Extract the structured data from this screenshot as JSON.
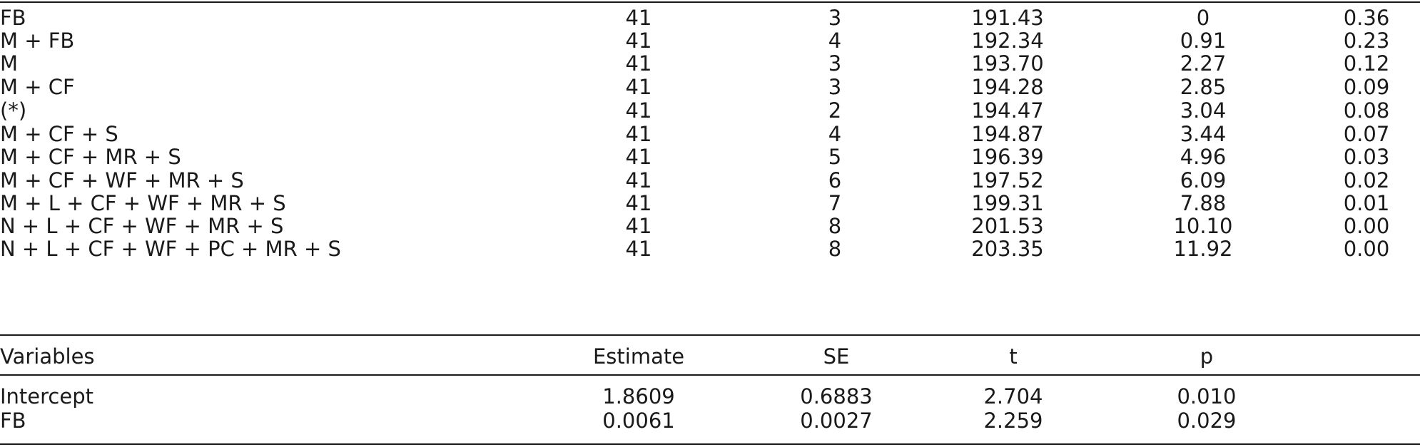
{
  "model_table": {
    "rows": [
      {
        "model": "FB",
        "n": "41",
        "k": "3",
        "aicc": "191.43",
        "delta": "0",
        "weight": "0.36"
      },
      {
        "model": "M + FB",
        "n": "41",
        "k": "4",
        "aicc": "192.34",
        "delta": "0.91",
        "weight": "0.23"
      },
      {
        "model": "M",
        "n": "41",
        "k": "3",
        "aicc": "193.70",
        "delta": "2.27",
        "weight": "0.12"
      },
      {
        "model": "M + CF",
        "n": "41",
        "k": "3",
        "aicc": "194.28",
        "delta": "2.85",
        "weight": "0.09"
      },
      {
        "model": "(*)",
        "n": "41",
        "k": "2",
        "aicc": "194.47",
        "delta": "3.04",
        "weight": "0.08"
      },
      {
        "model": "M + CF + S",
        "n": "41",
        "k": "4",
        "aicc": "194.87",
        "delta": "3.44",
        "weight": "0.07"
      },
      {
        "model": "M + CF + MR + S",
        "n": "41",
        "k": "5",
        "aicc": "196.39",
        "delta": "4.96",
        "weight": "0.03"
      },
      {
        "model": "M + CF + WF + MR + S",
        "n": "41",
        "k": "6",
        "aicc": "197.52",
        "delta": "6.09",
        "weight": "0.02"
      },
      {
        "model": "M + L + CF + WF + MR + S",
        "n": "41",
        "k": "7",
        "aicc": "199.31",
        "delta": "7.88",
        "weight": "0.01"
      },
      {
        "model": "N + L + CF + WF + MR + S",
        "n": "41",
        "k": "8",
        "aicc": "201.53",
        "delta": "10.10",
        "weight": "0.00"
      },
      {
        "model": "N + L + CF + WF + PC + MR + S",
        "n": "41",
        "k": "8",
        "aicc": "203.35",
        "delta": "11.92",
        "weight": "0.00"
      }
    ]
  },
  "coef_table": {
    "headers": [
      "Variables",
      "Estimate",
      "SE",
      "t",
      "p"
    ],
    "rows": [
      {
        "variable": "Intercept",
        "estimate": "1.8609",
        "se": "0.6883",
        "t": "2.704",
        "p": "0.010"
      },
      {
        "variable": "FB",
        "estimate": "0.0061",
        "se": "0.0027",
        "t": "2.259",
        "p": "0.029"
      }
    ]
  }
}
